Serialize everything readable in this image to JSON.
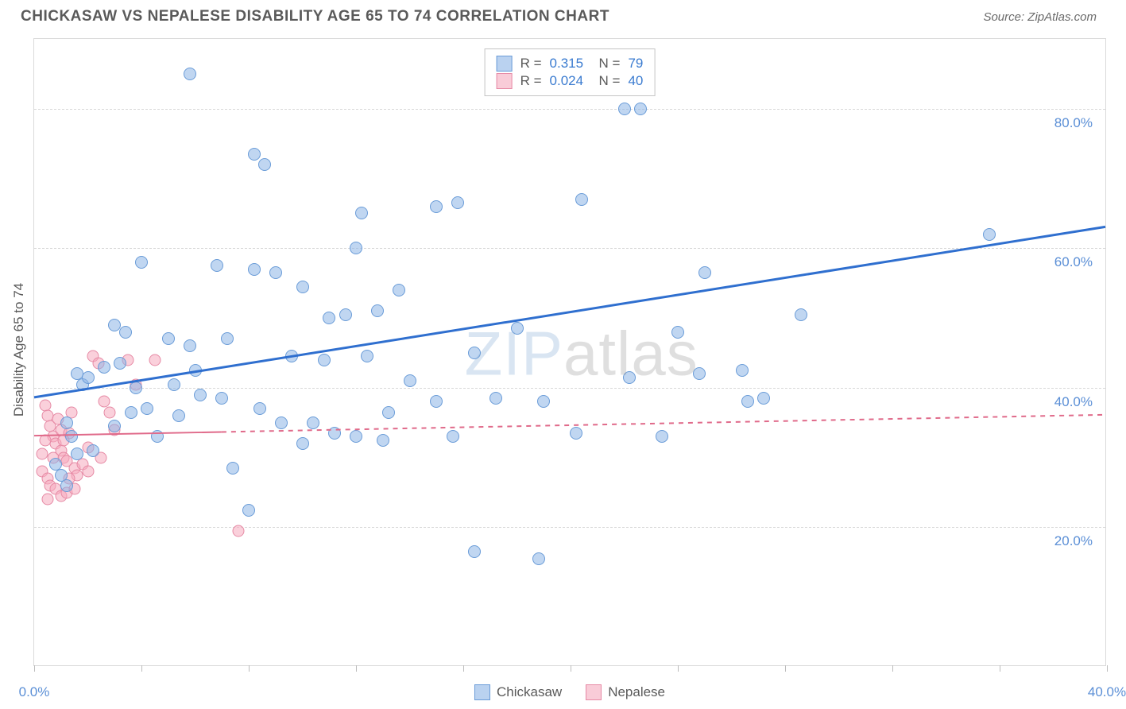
{
  "header": {
    "title": "CHICKASAW VS NEPALESE DISABILITY AGE 65 TO 74 CORRELATION CHART",
    "source": "Source: ZipAtlas.com"
  },
  "chart": {
    "type": "scatter",
    "y_axis_label": "Disability Age 65 to 74",
    "x_axis_label": "",
    "watermark": {
      "part1": "ZIP",
      "part2": "atlas"
    },
    "background_color": "#ffffff",
    "grid_color": "#d8d8d8",
    "xlim": [
      0,
      40
    ],
    "ylim": [
      0,
      90
    ],
    "ytick_values": [
      20,
      40,
      60,
      80
    ],
    "ytick_labels": [
      "20.0%",
      "40.0%",
      "60.0%",
      "80.0%"
    ],
    "xtick_values": [
      0,
      4,
      8,
      12,
      16,
      20,
      24,
      28,
      32,
      36,
      40
    ],
    "xtick_labels": {
      "0": "0.0%",
      "40": "40.0%"
    },
    "stats": [
      {
        "swatch": "blue",
        "r_label": "R =",
        "r_value": "0.315",
        "n_label": "N =",
        "n_value": "79"
      },
      {
        "swatch": "pink",
        "r_label": "R =",
        "r_value": "0.024",
        "n_label": "N =",
        "n_value": "40"
      }
    ],
    "legend": [
      {
        "label": "Chickasaw",
        "swatch": "blue"
      },
      {
        "label": "Nepalese",
        "swatch": "pink"
      }
    ],
    "series": {
      "chickasaw": {
        "color_fill": "rgba(140,180,230,0.55)",
        "color_stroke": "#6a9cd8",
        "marker_size": 16,
        "trend": {
          "x1": 0,
          "y1": 38.5,
          "x2": 40,
          "y2": 63.0,
          "color": "#2f6fcf",
          "width": 3,
          "dash": "none",
          "solid_extent": 40
        },
        "points": [
          [
            5.8,
            85.0
          ],
          [
            8.2,
            73.5
          ],
          [
            8.6,
            72.0
          ],
          [
            12.0,
            60.0
          ],
          [
            12.2,
            65.0
          ],
          [
            15.0,
            66.0
          ],
          [
            15.8,
            66.5
          ],
          [
            20.4,
            67.0
          ],
          [
            35.6,
            62.0
          ],
          [
            4.0,
            58.0
          ],
          [
            6.8,
            57.5
          ],
          [
            8.2,
            57.0
          ],
          [
            9.0,
            56.5
          ],
          [
            10.0,
            54.5
          ],
          [
            11.0,
            50.0
          ],
          [
            11.6,
            50.5
          ],
          [
            12.8,
            51.0
          ],
          [
            13.6,
            54.0
          ],
          [
            3.0,
            49.0
          ],
          [
            3.4,
            48.0
          ],
          [
            5.0,
            47.0
          ],
          [
            5.8,
            46.0
          ],
          [
            7.2,
            47.0
          ],
          [
            18.0,
            48.5
          ],
          [
            24.0,
            48.0
          ],
          [
            28.6,
            50.5
          ],
          [
            1.6,
            42.0
          ],
          [
            1.8,
            40.5
          ],
          [
            2.0,
            41.5
          ],
          [
            2.6,
            43.0
          ],
          [
            3.2,
            43.5
          ],
          [
            3.8,
            40.0
          ],
          [
            5.2,
            40.5
          ],
          [
            6.0,
            42.5
          ],
          [
            6.2,
            39.0
          ],
          [
            7.0,
            38.5
          ],
          [
            8.4,
            37.0
          ],
          [
            9.6,
            44.5
          ],
          [
            10.8,
            44.0
          ],
          [
            12.4,
            44.5
          ],
          [
            14.0,
            41.0
          ],
          [
            15.0,
            38.0
          ],
          [
            13.2,
            36.5
          ],
          [
            16.4,
            45.0
          ],
          [
            17.2,
            38.5
          ],
          [
            19.0,
            38.0
          ],
          [
            22.2,
            41.5
          ],
          [
            26.4,
            42.5
          ],
          [
            27.2,
            38.5
          ],
          [
            1.2,
            35.0
          ],
          [
            1.4,
            33.0
          ],
          [
            1.6,
            30.5
          ],
          [
            2.2,
            31.0
          ],
          [
            3.0,
            34.5
          ],
          [
            4.6,
            33.0
          ],
          [
            7.4,
            28.5
          ],
          [
            8.0,
            22.5
          ],
          [
            9.2,
            35.0
          ],
          [
            10.0,
            32.0
          ],
          [
            10.4,
            35.0
          ],
          [
            11.2,
            33.5
          ],
          [
            12.0,
            33.0
          ],
          [
            13.0,
            32.5
          ],
          [
            15.6,
            33.0
          ],
          [
            0.8,
            29.0
          ],
          [
            1.0,
            27.5
          ],
          [
            1.2,
            26.0
          ],
          [
            16.4,
            16.5
          ],
          [
            18.8,
            15.5
          ],
          [
            22.6,
            80.0
          ],
          [
            22.0,
            80.0
          ],
          [
            25.0,
            56.5
          ],
          [
            26.6,
            38.0
          ],
          [
            23.4,
            33.0
          ],
          [
            24.8,
            42.0
          ],
          [
            20.2,
            33.5
          ],
          [
            3.6,
            36.5
          ],
          [
            4.2,
            37.0
          ],
          [
            5.4,
            36.0
          ]
        ]
      },
      "nepalese": {
        "color_fill": "rgba(245,170,190,0.55)",
        "color_stroke": "#e68aa5",
        "marker_size": 15,
        "trend": {
          "x1": 0,
          "y1": 33.0,
          "x2": 40,
          "y2": 36.0,
          "color": "#e06a8a",
          "width": 2,
          "dash": "6 6",
          "solid_extent": 7
        },
        "points": [
          [
            0.4,
            37.5
          ],
          [
            0.5,
            36.0
          ],
          [
            0.6,
            34.5
          ],
          [
            0.7,
            33.0
          ],
          [
            0.8,
            32.0
          ],
          [
            0.9,
            35.5
          ],
          [
            1.0,
            34.0
          ],
          [
            1.0,
            31.0
          ],
          [
            1.1,
            30.0
          ],
          [
            1.2,
            29.5
          ],
          [
            1.3,
            33.5
          ],
          [
            1.4,
            36.5
          ],
          [
            1.5,
            28.5
          ],
          [
            1.6,
            27.5
          ],
          [
            1.8,
            29.0
          ],
          [
            2.0,
            31.5
          ],
          [
            2.2,
            44.5
          ],
          [
            2.4,
            43.5
          ],
          [
            2.6,
            38.0
          ],
          [
            2.8,
            36.5
          ],
          [
            3.0,
            34.0
          ],
          [
            3.5,
            44.0
          ],
          [
            3.8,
            40.5
          ],
          [
            4.5,
            44.0
          ],
          [
            0.3,
            30.5
          ],
          [
            0.3,
            28.0
          ],
          [
            0.5,
            27.0
          ],
          [
            0.6,
            26.0
          ],
          [
            0.8,
            25.5
          ],
          [
            1.0,
            24.5
          ],
          [
            1.2,
            25.0
          ],
          [
            1.5,
            25.5
          ],
          [
            2.0,
            28.0
          ],
          [
            2.5,
            30.0
          ],
          [
            0.4,
            32.5
          ],
          [
            0.7,
            30.0
          ],
          [
            1.1,
            32.5
          ],
          [
            7.6,
            19.5
          ],
          [
            0.5,
            24.0
          ],
          [
            1.3,
            27.0
          ]
        ]
      }
    }
  }
}
